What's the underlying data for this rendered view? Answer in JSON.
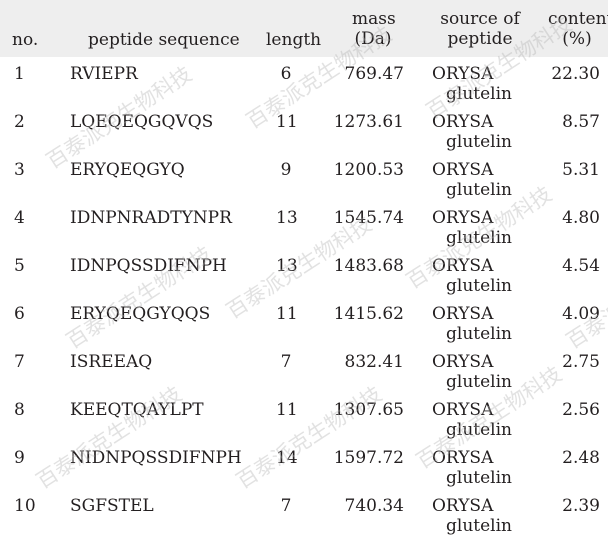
{
  "headers": {
    "no": "no.",
    "sequence": "peptide sequence",
    "length": "length",
    "mass_line1": "mass",
    "mass_line2": "(Da)",
    "source_line1": "source of",
    "source_line2": "peptide",
    "content_line1": "content",
    "content_line2": "(%)"
  },
  "rows": [
    {
      "no": "1",
      "sequence": "RVIEPR",
      "length": "6",
      "mass": "769.47",
      "source_line1": "ORYSA",
      "source_line2": "glutelin",
      "content": "22.30"
    },
    {
      "no": "2",
      "sequence": "LQEQEQGQVQS",
      "length": "11",
      "mass": "1273.61",
      "source_line1": "ORYSA",
      "source_line2": "glutelin",
      "content": "8.57"
    },
    {
      "no": "3",
      "sequence": "ERYQEQGYQ",
      "length": "9",
      "mass": "1200.53",
      "source_line1": "ORYSA",
      "source_line2": "glutelin",
      "content": "5.31"
    },
    {
      "no": "4",
      "sequence": "IDNPNRADTYNPR",
      "length": "13",
      "mass": "1545.74",
      "source_line1": "ORYSA",
      "source_line2": "glutelin",
      "content": "4.80"
    },
    {
      "no": "5",
      "sequence": "IDNPQSSDIFNPH",
      "length": "13",
      "mass": "1483.68",
      "source_line1": "ORYSA",
      "source_line2": "glutelin",
      "content": "4.54"
    },
    {
      "no": "6",
      "sequence": "ERYQEQGYQQS",
      "length": "11",
      "mass": "1415.62",
      "source_line1": "ORYSA",
      "source_line2": "glutelin",
      "content": "4.09"
    },
    {
      "no": "7",
      "sequence": "ISREEAQ",
      "length": "7",
      "mass": "832.41",
      "source_line1": "ORYSA",
      "source_line2": "glutelin",
      "content": "2.75"
    },
    {
      "no": "8",
      "sequence": "KEEQTQAYLPT",
      "length": "11",
      "mass": "1307.65",
      "source_line1": "ORYSA",
      "source_line2": "glutelin",
      "content": "2.56"
    },
    {
      "no": "9",
      "sequence": "NIDNPQSSDIFNPH",
      "length": "14",
      "mass": "1597.72",
      "source_line1": "ORYSA",
      "source_line2": "glutelin",
      "content": "2.48"
    },
    {
      "no": "10",
      "sequence": "SGFSTEL",
      "length": "7",
      "mass": "740.34",
      "source_line1": "ORYSA",
      "source_line2": "glutelin",
      "content": "2.39"
    }
  ],
  "watermark": "百泰派克生物科技"
}
